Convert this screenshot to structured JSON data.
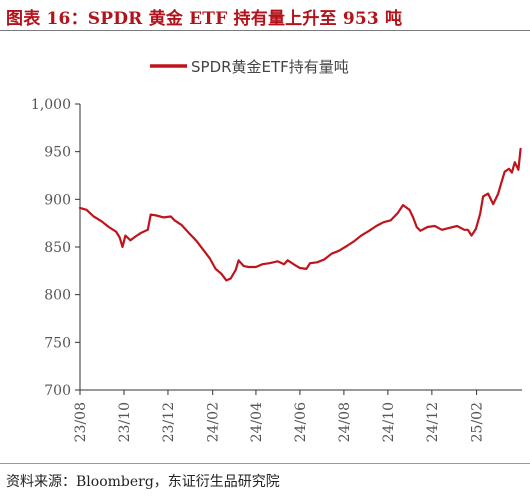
{
  "title": "图表 16：SPDR 黄金 ETF 持有量上升至 953 吨",
  "source": "资料来源：Bloomberg，东证衍生品研究院",
  "colors": {
    "title": "#b3121a",
    "series": "#c0141c",
    "axis": "#333333"
  },
  "chart_data": {
    "type": "line",
    "title": "",
    "xlabel": "",
    "ylabel": "",
    "ylim": [
      700,
      1000
    ],
    "yticks": [
      "1,000",
      "950",
      "900",
      "850",
      "800",
      "750",
      "700"
    ],
    "xlim": [
      "2023-08-01",
      "2025-04-05"
    ],
    "xticks": [
      "23/08",
      "23/10",
      "23/12",
      "24/02",
      "24/04",
      "24/06",
      "24/08",
      "24/10",
      "24/12",
      "25/02"
    ],
    "grid": false,
    "legend": "top-center",
    "series": [
      {
        "name": "SPDR黄金ETF持有量吨",
        "points": [
          [
            "2023-08-01",
            891
          ],
          [
            "2023-08-10",
            889
          ],
          [
            "2023-08-20",
            882
          ],
          [
            "2023-08-31",
            877
          ],
          [
            "2023-09-10",
            871
          ],
          [
            "2023-09-20",
            866
          ],
          [
            "2023-09-25",
            860
          ],
          [
            "2023-09-29",
            850
          ],
          [
            "2023-10-03",
            862
          ],
          [
            "2023-10-10",
            857
          ],
          [
            "2023-10-17",
            861
          ],
          [
            "2023-10-25",
            865
          ],
          [
            "2023-11-03",
            868
          ],
          [
            "2023-11-07",
            884
          ],
          [
            "2023-11-15",
            883
          ],
          [
            "2023-11-25",
            881
          ],
          [
            "2023-12-05",
            882
          ],
          [
            "2023-12-10",
            878
          ],
          [
            "2023-12-20",
            873
          ],
          [
            "2023-12-31",
            864
          ],
          [
            "2024-01-10",
            856
          ],
          [
            "2024-01-20",
            846
          ],
          [
            "2024-01-28",
            838
          ],
          [
            "2024-02-05",
            827
          ],
          [
            "2024-02-13",
            822
          ],
          [
            "2024-02-20",
            815
          ],
          [
            "2024-02-26",
            817
          ],
          [
            "2024-03-04",
            826
          ],
          [
            "2024-03-08",
            836
          ],
          [
            "2024-03-15",
            830
          ],
          [
            "2024-03-22",
            829
          ],
          [
            "2024-04-01",
            829
          ],
          [
            "2024-04-10",
            832
          ],
          [
            "2024-04-20",
            833
          ],
          [
            "2024-05-01",
            835
          ],
          [
            "2024-05-10",
            832
          ],
          [
            "2024-05-15",
            836
          ],
          [
            "2024-05-25",
            831
          ],
          [
            "2024-06-01",
            828
          ],
          [
            "2024-06-10",
            827
          ],
          [
            "2024-06-15",
            833
          ],
          [
            "2024-06-25",
            834
          ],
          [
            "2024-07-05",
            837
          ],
          [
            "2024-07-15",
            843
          ],
          [
            "2024-07-25",
            846
          ],
          [
            "2024-08-05",
            851
          ],
          [
            "2024-08-15",
            856
          ],
          [
            "2024-08-25",
            862
          ],
          [
            "2024-09-05",
            867
          ],
          [
            "2024-09-15",
            872
          ],
          [
            "2024-09-25",
            876
          ],
          [
            "2024-10-05",
            878
          ],
          [
            "2024-10-15",
            886
          ],
          [
            "2024-10-22",
            894
          ],
          [
            "2024-10-31",
            889
          ],
          [
            "2024-11-05",
            881
          ],
          [
            "2024-11-10",
            871
          ],
          [
            "2024-11-15",
            867
          ],
          [
            "2024-11-25",
            871
          ],
          [
            "2024-12-05",
            872
          ],
          [
            "2024-12-15",
            868
          ],
          [
            "2024-12-25",
            870
          ],
          [
            "2025-01-05",
            872
          ],
          [
            "2025-01-15",
            868
          ],
          [
            "2025-01-20",
            868
          ],
          [
            "2025-01-25",
            862
          ],
          [
            "2025-01-31",
            869
          ],
          [
            "2025-02-06",
            885
          ],
          [
            "2025-02-10",
            903
          ],
          [
            "2025-02-17",
            906
          ],
          [
            "2025-02-24",
            895
          ],
          [
            "2025-03-03",
            906
          ],
          [
            "2025-03-08",
            919
          ],
          [
            "2025-03-12",
            929
          ],
          [
            "2025-03-18",
            932
          ],
          [
            "2025-03-22",
            928
          ],
          [
            "2025-03-26",
            939
          ],
          [
            "2025-03-31",
            931
          ],
          [
            "2025-04-03",
            953
          ]
        ]
      }
    ]
  }
}
